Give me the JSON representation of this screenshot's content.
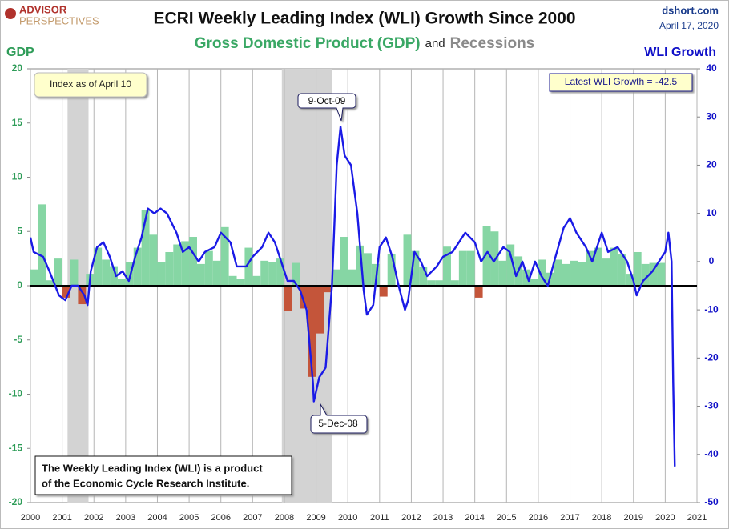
{
  "chart_data": {
    "type": "combo",
    "title": "ECRI Weekly Leading Index (WLI) Growth Since 2000",
    "subtitle": [
      "Gross Domestic Product (GDP)",
      "and",
      "Recessions"
    ],
    "logo": [
      "ADVISOR",
      "PERSPECTIVES"
    ],
    "source": "dshort.com",
    "date": "April 17, 2020",
    "ylabel": "GDP",
    "y2label": "WLI Growth",
    "xlim": [
      2000,
      2021
    ],
    "xticks": [
      2000,
      2001,
      2002,
      2003,
      2004,
      2005,
      2006,
      2007,
      2008,
      2009,
      2010,
      2011,
      2012,
      2013,
      2014,
      2015,
      2016,
      2017,
      2018,
      2019,
      2020,
      2021
    ],
    "ylim": [
      -20,
      20
    ],
    "yticks": [
      -20,
      -15,
      -10,
      -5,
      0,
      5,
      10,
      15,
      20
    ],
    "y2lim": [
      -50,
      40
    ],
    "y2ticks": [
      -50,
      -40,
      -30,
      -20,
      -10,
      0,
      10,
      20,
      30,
      40
    ],
    "grid": "x",
    "recession_color": "#d3d3d3",
    "recessions": [
      [
        2001.17,
        2001.83
      ],
      [
        2007.92,
        2009.5
      ]
    ],
    "series": [
      {
        "type": "bar",
        "color": "#86d6a4",
        "negative_color": "#c4553a",
        "x": [
          2000,
          2000.25,
          2000.5,
          2000.75,
          2001,
          2001.25,
          2001.5,
          2001.75,
          2002,
          2002.25,
          2002.5,
          2002.75,
          2003,
          2003.25,
          2003.5,
          2003.75,
          2004,
          2004.25,
          2004.5,
          2004.75,
          2005,
          2005.25,
          2005.5,
          2005.75,
          2006,
          2006.25,
          2006.5,
          2006.75,
          2007,
          2007.25,
          2007.5,
          2007.75,
          2008,
          2008.25,
          2008.5,
          2008.75,
          2009,
          2009.25,
          2009.5,
          2009.75,
          2010,
          2010.25,
          2010.5,
          2010.75,
          2011,
          2011.25,
          2011.5,
          2011.75,
          2012,
          2012.25,
          2012.5,
          2012.75,
          2013,
          2013.25,
          2013.5,
          2013.75,
          2014,
          2014.25,
          2014.5,
          2014.75,
          2015,
          2015.25,
          2015.5,
          2015.75,
          2016,
          2016.25,
          2016.5,
          2016.75,
          2017,
          2017.25,
          2017.5,
          2017.75,
          2018,
          2018.25,
          2018.5,
          2018.75,
          2019,
          2019.25,
          2019.5,
          2019.75
        ],
        "values": [
          1.5,
          7.5,
          0.5,
          2.5,
          -1.1,
          2.4,
          -1.7,
          1.1,
          3.5,
          2.4,
          1.8,
          0.6,
          2.2,
          3.5,
          7.0,
          4.7,
          2.2,
          3.1,
          3.8,
          4.1,
          4.5,
          2.0,
          3.2,
          2.3,
          5.4,
          0.9,
          0.6,
          3.5,
          0.9,
          2.3,
          2.2,
          2.5,
          -2.3,
          2.1,
          -2.1,
          -8.4,
          -4.4,
          -0.6,
          1.5,
          4.5,
          1.5,
          3.7,
          3.0,
          2.0,
          -1.0,
          2.9,
          -0.1,
          4.7,
          3.2,
          1.7,
          0.5,
          0.5,
          3.6,
          0.5,
          3.2,
          3.2,
          -1.1,
          5.5,
          5.0,
          2.3,
          3.8,
          2.7,
          1.5,
          0.6,
          2.4,
          1.2,
          2.4,
          2.0,
          2.3,
          2.2,
          3.2,
          3.5,
          2.5,
          3.5,
          2.9,
          1.1,
          3.1,
          2.0,
          2.1,
          2.1
        ]
      },
      {
        "type": "line",
        "axis": "y2",
        "color": "#1a1ae6",
        "x": [
          2000,
          2000.1,
          2000.4,
          2000.6,
          2000.9,
          2001.1,
          2001.3,
          2001.5,
          2001.7,
          2001.8,
          2001.9,
          2002.1,
          2002.3,
          2002.5,
          2002.7,
          2002.9,
          2003.1,
          2003.3,
          2003.5,
          2003.7,
          2003.9,
          2004.1,
          2004.3,
          2004.6,
          2004.8,
          2005,
          2005.3,
          2005.5,
          2005.8,
          2006,
          2006.3,
          2006.5,
          2006.8,
          2007,
          2007.3,
          2007.5,
          2007.7,
          2007.9,
          2008.1,
          2008.3,
          2008.5,
          2008.7,
          2008.9,
          2008.93,
          2009.1,
          2009.3,
          2009.5,
          2009.65,
          2009.77,
          2009.9,
          2010.1,
          2010.3,
          2010.5,
          2010.6,
          2010.8,
          2011,
          2011.2,
          2011.4,
          2011.6,
          2011.8,
          2011.9,
          2012.1,
          2012.3,
          2012.5,
          2012.8,
          2013,
          2013.3,
          2013.5,
          2013.7,
          2014,
          2014.2,
          2014.4,
          2014.6,
          2014.9,
          2015.1,
          2015.3,
          2015.5,
          2015.7,
          2015.9,
          2016.1,
          2016.3,
          2016.5,
          2016.8,
          2017,
          2017.2,
          2017.5,
          2017.7,
          2018,
          2018.2,
          2018.5,
          2018.8,
          2019,
          2019.1,
          2019.3,
          2019.6,
          2019.8,
          2020,
          2020.1,
          2020.2,
          2020.25,
          2020.3
        ],
        "values": [
          5,
          2,
          1,
          -2,
          -7,
          -8,
          -5,
          -5,
          -7,
          -9,
          -2,
          3,
          4,
          1,
          -3,
          -2,
          -4,
          1,
          5,
          11,
          10,
          11,
          10,
          6,
          2,
          3,
          0,
          2,
          3,
          6,
          4,
          -1,
          -1,
          1,
          3,
          6,
          4,
          0,
          -4,
          -4,
          -6,
          -10,
          -25,
          -29,
          -24,
          -22,
          -5,
          20,
          28,
          22,
          20,
          10,
          -6,
          -11,
          -9,
          3,
          5,
          1,
          -5,
          -10,
          -8,
          2,
          0,
          -3,
          -1,
          1,
          2,
          4,
          6,
          4,
          0,
          2,
          0,
          3,
          2,
          -3,
          0,
          -4,
          0,
          -3,
          -5,
          0,
          7,
          9,
          6,
          3,
          0,
          6,
          2,
          3,
          0,
          -4,
          -7,
          -4,
          -2,
          0,
          2,
          6,
          0,
          -25,
          -42.5
        ]
      }
    ],
    "annotations": [
      "9-Oct-09",
      "5-Dec-08"
    ],
    "notes": [
      "Index as of April 10",
      "Latest WLI Growth = -42.5"
    ],
    "footnote": [
      "The Weekly Leading Index (WLI) is a product",
      "of the Economic Cycle Research Institute."
    ]
  }
}
